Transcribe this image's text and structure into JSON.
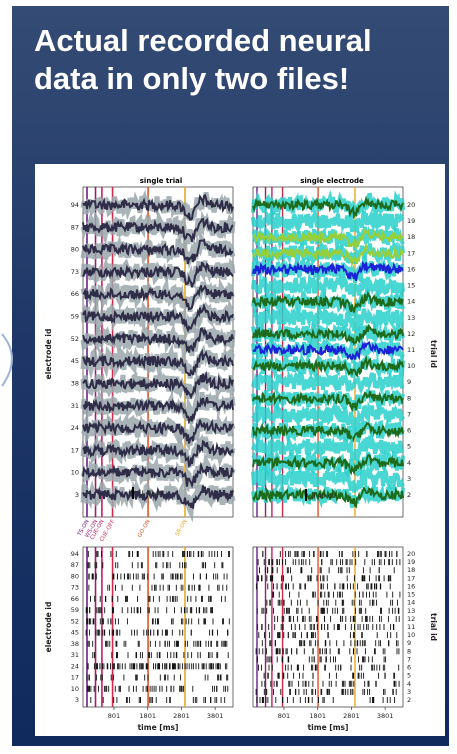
{
  "headline": "Actual recorded neural data in only two files!",
  "colors": {
    "accent": "#1f3768",
    "dark_trace": "#2f2d48",
    "grey_band": "#9aa7ad",
    "cyan_band": "#29d0cc",
    "green_trace": "#1d6b1b",
    "lime_trace": "#96cf3a",
    "blue_trace": "#1c22d8",
    "event_colors": [
      "#6a1f8e",
      "#9a1d6f",
      "#c41f5e",
      "#d22a4b",
      "#e2542a",
      "#e8a82a"
    ]
  },
  "chart_data": [
    {
      "type": "line",
      "title": "single trial",
      "ylabel": "electrode id",
      "y_ticks": [
        "94",
        "87",
        "80",
        "73",
        "66",
        "59",
        "52",
        "45",
        "38",
        "31",
        "24",
        "17",
        "10",
        "3"
      ],
      "scale_bar": "|| 40 uV",
      "events": [
        {
          "label": "TS-ON",
          "t": 0
        },
        {
          "label": "WS-ON",
          "t": 240
        },
        {
          "label": "CUE-ON",
          "t": 420
        },
        {
          "label": "CUE-OFF",
          "t": 720
        },
        {
          "label": "GO-ON",
          "t": 1720
        },
        {
          "label": "SR-ON",
          "t": 2760
        }
      ]
    },
    {
      "type": "line",
      "title": "single electrode",
      "ylabel": "trial id",
      "y_ticks": [
        "20",
        "19",
        "18",
        "17",
        "16",
        "15",
        "14",
        "13",
        "12",
        "11",
        "10",
        "9",
        "8",
        "7",
        "6",
        "5",
        "4",
        "3",
        "2"
      ],
      "scale_bar": "|| 40 uV"
    },
    {
      "type": "scatter",
      "subtype": "raster",
      "ylabel": "electrode id",
      "xlabel": "time [ms]",
      "y_ticks": [
        "94",
        "87",
        "80",
        "73",
        "66",
        "59",
        "52",
        "45",
        "38",
        "31",
        "24",
        "17",
        "10",
        "3"
      ],
      "x_ticks": [
        "801",
        "1801",
        "2801",
        "3801"
      ]
    },
    {
      "type": "scatter",
      "subtype": "raster",
      "ylabel": "trial id",
      "xlabel": "time [ms]",
      "y_ticks": [
        "20",
        "19",
        "18",
        "17",
        "16",
        "15",
        "14",
        "13",
        "12",
        "11",
        "10",
        "9",
        "8",
        "7",
        "6",
        "5",
        "4",
        "3",
        "2"
      ],
      "x_ticks": [
        "801",
        "1801",
        "2801",
        "3801"
      ]
    }
  ]
}
